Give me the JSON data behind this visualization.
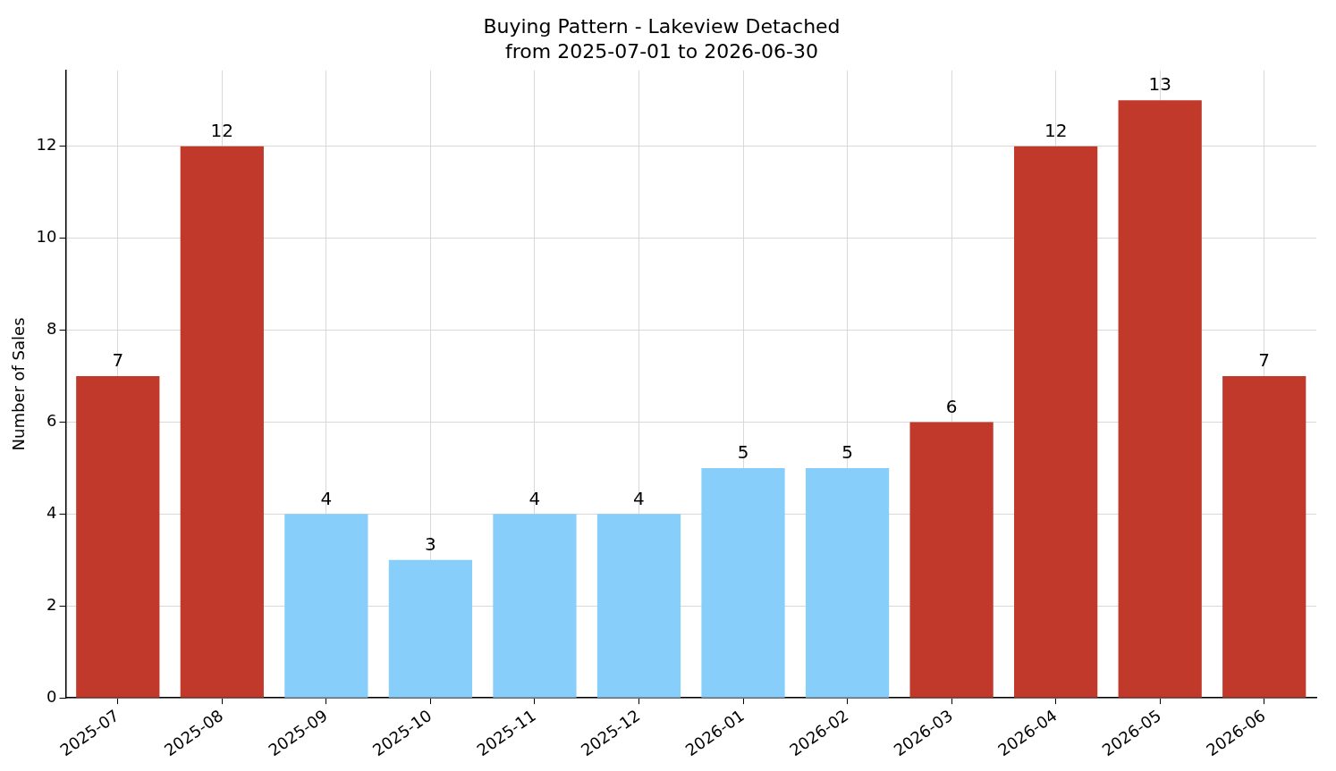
{
  "chart_data": {
    "type": "bar",
    "title": "Buying Pattern - Lakeview Detached",
    "subtitle": "from 2025-07-01 to 2026-06-30",
    "ylabel": "Number of Sales",
    "categories": [
      "2025-07",
      "2025-08",
      "2025-09",
      "2025-10",
      "2025-11",
      "2025-12",
      "2026-01",
      "2026-02",
      "2026-03",
      "2026-04",
      "2026-05",
      "2026-06"
    ],
    "values": [
      7,
      12,
      4,
      3,
      4,
      4,
      5,
      5,
      6,
      12,
      13,
      7
    ],
    "colors": [
      "#c0392b",
      "#c0392b",
      "#87cefa",
      "#87cefa",
      "#87cefa",
      "#87cefa",
      "#87cefa",
      "#87cefa",
      "#c0392b",
      "#c0392b",
      "#c0392b",
      "#c0392b"
    ],
    "ylim": [
      0,
      13.65
    ],
    "yticks": [
      0,
      2,
      4,
      6,
      8,
      10,
      12
    ],
    "grid": true,
    "data_labels": true
  }
}
